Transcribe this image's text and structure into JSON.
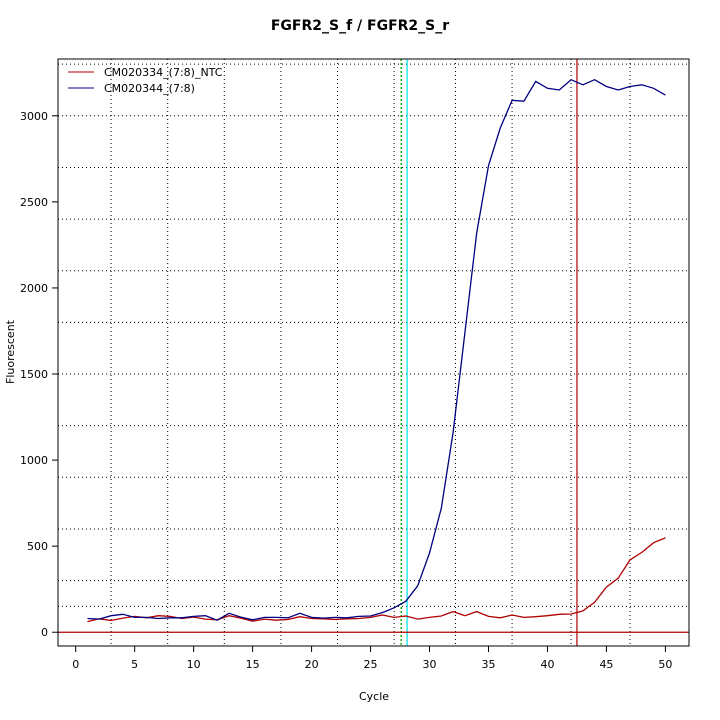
{
  "chart_data": {
    "type": "line",
    "title": "FGFR2_S_f / FGFR2_S_r",
    "xlabel": "Cycle",
    "ylabel": "Fluorescent",
    "xlim": [
      -1.5,
      52
    ],
    "ylim": [
      -80,
      3330
    ],
    "xticks": [
      0,
      5,
      10,
      15,
      20,
      25,
      30,
      35,
      40,
      45,
      50
    ],
    "yticks": [
      0,
      500,
      1000,
      1500,
      2000,
      2500,
      3000
    ],
    "grid": true,
    "grid_x": [
      3,
      7.8,
      12.6,
      17.4,
      22.2,
      27,
      32.2,
      37,
      42,
      47
    ],
    "grid_y": [
      150,
      300,
      600,
      900,
      1200,
      1500,
      1800,
      2100,
      2400,
      2700,
      3000,
      3300
    ],
    "legend_position": "top-left",
    "series": [
      {
        "name": "CM020334_(7:8)_NTC",
        "color": "#b00000",
        "x": [
          1,
          2,
          3,
          4,
          5,
          6,
          7,
          8,
          9,
          10,
          11,
          12,
          13,
          14,
          15,
          16,
          17,
          18,
          19,
          20,
          21,
          22,
          23,
          24,
          25,
          26,
          27,
          28,
          29,
          30,
          31,
          32,
          33,
          34,
          35,
          36,
          37,
          38,
          39,
          40,
          41,
          42,
          43,
          44,
          45,
          46,
          47,
          48,
          49,
          50
        ],
        "y": [
          62,
          78,
          68,
          82,
          92,
          84,
          96,
          92,
          80,
          88,
          76,
          72,
          96,
          82,
          64,
          76,
          70,
          74,
          90,
          80,
          78,
          74,
          78,
          80,
          86,
          100,
          86,
          94,
          76,
          86,
          94,
          120,
          96,
          120,
          92,
          84,
          100,
          86,
          90,
          96,
          104,
          106,
          124,
          174,
          262,
          314,
          420,
          464,
          520,
          548
        ]
      },
      {
        "name": "CM020344_(7:8)",
        "color": "#000080",
        "x": [
          1,
          2,
          3,
          4,
          5,
          6,
          7,
          8,
          9,
          10,
          11,
          12,
          13,
          14,
          15,
          16,
          17,
          18,
          19,
          20,
          21,
          22,
          23,
          24,
          25,
          26,
          27,
          28,
          29,
          30,
          31,
          32,
          33,
          34,
          35,
          36,
          37,
          38,
          39,
          40,
          41,
          42,
          43,
          44,
          45,
          46,
          47,
          48,
          49,
          50
        ],
        "y": [
          80,
          76,
          96,
          104,
          86,
          86,
          80,
          84,
          84,
          92,
          96,
          70,
          110,
          88,
          72,
          86,
          86,
          84,
          110,
          86,
          82,
          86,
          84,
          92,
          94,
          114,
          142,
          180,
          270,
          460,
          720,
          1160,
          1740,
          2320,
          2710,
          2930,
          3090,
          3085,
          3200,
          3160,
          3150,
          3210,
          3180,
          3210,
          3170,
          3150,
          3170,
          3180,
          3160,
          3120
        ]
      }
    ],
    "threshold_y": 0,
    "vlines": [
      {
        "x": 27.6,
        "color": "#00aa00",
        "style": "dotted"
      },
      {
        "x": 28.1,
        "color": "#00e5ee",
        "style": "solid"
      },
      {
        "x": 42.5,
        "color": "#b00000",
        "style": "solid"
      }
    ]
  }
}
